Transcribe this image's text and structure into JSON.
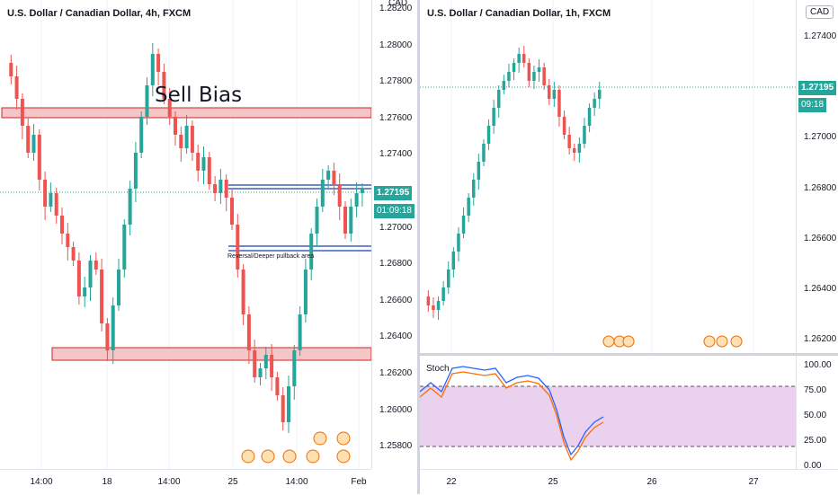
{
  "left_chart": {
    "title": "U.S. Dollar / Canadian Dollar, 4h, FXCM",
    "currency": "CAD",
    "y_ticks": [
      "1.28200",
      "1.28000",
      "1.27800",
      "1.27600",
      "1.27400",
      "1.27200",
      "1.27000",
      "1.26800",
      "1.26600",
      "1.26400",
      "1.26200",
      "1.26000",
      "1.25800"
    ],
    "x_ticks": [
      "14:00",
      "18",
      "14:00",
      "25",
      "14:00",
      "Feb"
    ],
    "last_price": "1.27195",
    "countdown": "01:09:18",
    "annotation_sell": "Sell Bias",
    "annotation_pullback": "Reversal/Deeper pullback area",
    "colors": {
      "up": "#26a69a",
      "down": "#ef5350",
      "zone_fill": "#f5c6c6",
      "zone_border": "#c62828",
      "blue": "#1e40af"
    }
  },
  "right_chart": {
    "title": "U.S. Dollar / Canadian Dollar, 1h, FXCM",
    "currency": "CAD",
    "y_ticks": [
      "1.27400",
      "1.27200",
      "1.27000",
      "1.26800",
      "1.26600",
      "1.26400",
      "1.26200"
    ],
    "x_ticks": [
      "22",
      "25",
      "26",
      "27"
    ],
    "last_price": "1.27195",
    "countdown": "09:18"
  },
  "stoch": {
    "label": "Stoch",
    "y_ticks": [
      "100.00",
      "75.00",
      "50.00",
      "25.00",
      "0.00"
    ],
    "colors": {
      "k": "#2962ff",
      "d": "#ff6d00",
      "band": "#e1bee7"
    }
  }
}
